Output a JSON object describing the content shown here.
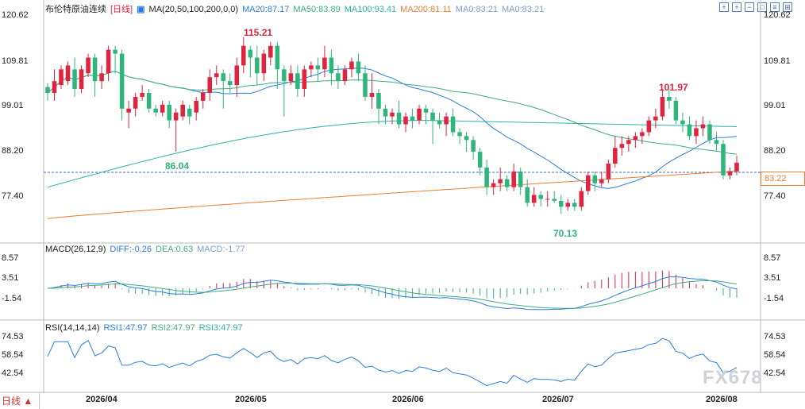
{
  "main": {
    "legend": {
      "title": "布伦特原油连续",
      "period": "[日线]",
      "ma_label": "MA(20,50,100,200,0,0)",
      "ma20": "MA20:87.17",
      "ma50": "MA50:83.89",
      "ma100": "MA100:93.41",
      "ma200": "MA200:81.11",
      "ma0a": "MA0:83.21",
      "ma0b": "MA0:83.21"
    },
    "y_ticks": [
      "120.62",
      "109.81",
      "99.01",
      "88.20",
      "77.40"
    ],
    "price_tag": "83.22",
    "annotations": {
      "high": "115.21",
      "mid_high": "101.97",
      "low_a": "86.04",
      "low_b": "70.13"
    }
  },
  "macd": {
    "legend": {
      "title": "MACD(26,12,9)",
      "diff": "DIFF:-0.26",
      "dea": "DEA:0.63",
      "macd": "MACD:-1.77"
    },
    "y_ticks": [
      "8.57",
      "3.51",
      "-1.54"
    ]
  },
  "rsi": {
    "legend": {
      "title": "RSI(14,14,14)",
      "rsi1": "RSI1:47.97",
      "rsi2": "RSI2:47.97",
      "rsi3": "RSI3:47.97"
    },
    "y_ticks": [
      "74.53",
      "58.54",
      "42.54"
    ]
  },
  "x_ticks": [
    "2026/04",
    "2026/05",
    "2026/06",
    "2026/07",
    "2026/08"
  ],
  "period_button": "日线 ▲",
  "watermark": "FX678",
  "colors": {
    "up": "#e0233e",
    "down": "#2fb57a",
    "ma20": "#2a7de0",
    "ma50": "#3fad7f",
    "ma100": "#2ab3a8",
    "ma200": "#ee7d2e",
    "text_up": "#e0233e",
    "text_down": "#2fb57a"
  },
  "chart_data": {
    "type": "candlestick",
    "price_range": [
      66,
      120.62
    ],
    "candles_ohlc": [
      [
        102.5,
        103.5,
        99,
        101
      ],
      [
        101,
        107,
        99,
        104
      ],
      [
        103,
        108,
        102,
        107
      ],
      [
        104,
        109,
        103,
        108
      ],
      [
        107,
        110,
        100,
        102
      ],
      [
        102,
        108,
        101,
        107
      ],
      [
        106,
        111,
        105,
        110
      ],
      [
        110,
        111,
        100,
        104
      ],
      [
        104,
        108,
        102,
        106
      ],
      [
        106,
        113,
        104,
        112
      ],
      [
        112,
        113,
        106,
        111
      ],
      [
        111,
        112,
        94,
        97
      ],
      [
        96,
        99,
        92,
        97
      ],
      [
        97,
        101,
        95,
        100
      ],
      [
        100,
        103,
        99,
        101
      ],
      [
        101,
        102,
        96,
        97
      ],
      [
        97,
        98,
        95,
        96
      ],
      [
        96,
        99,
        95,
        98
      ],
      [
        98,
        99,
        92,
        94
      ],
      [
        94,
        97,
        86.04,
        96
      ],
      [
        95,
        99,
        94,
        98
      ],
      [
        97,
        98,
        93,
        95
      ],
      [
        96,
        100,
        94,
        99
      ],
      [
        99,
        102,
        97,
        101
      ],
      [
        101,
        107,
        99,
        105
      ],
      [
        105,
        108,
        103,
        106
      ],
      [
        106,
        107,
        97,
        104
      ],
      [
        104,
        106,
        101,
        103
      ],
      [
        103,
        110,
        100,
        108
      ],
      [
        108,
        115.21,
        106,
        113
      ],
      [
        112,
        113,
        105,
        110
      ],
      [
        110,
        113,
        103,
        106
      ],
      [
        106,
        112,
        104,
        111
      ],
      [
        110,
        114,
        108,
        113
      ],
      [
        113,
        114,
        102,
        107
      ],
      [
        107,
        108,
        95,
        104
      ],
      [
        104,
        108,
        103,
        106
      ],
      [
        106,
        108,
        100,
        102
      ],
      [
        102,
        108,
        100,
        107
      ],
      [
        107,
        109,
        105,
        108
      ],
      [
        108,
        110,
        104,
        107
      ],
      [
        107,
        113,
        105,
        110
      ],
      [
        110,
        112,
        103,
        106
      ],
      [
        106,
        108,
        102,
        104
      ],
      [
        104,
        108,
        103,
        107
      ],
      [
        107,
        110,
        105,
        109
      ],
      [
        109,
        111,
        104,
        106
      ],
      [
        106,
        108,
        99,
        100
      ],
      [
        100,
        106,
        97,
        101
      ],
      [
        101,
        102,
        93,
        97
      ],
      [
        97,
        98,
        93,
        95
      ],
      [
        95,
        97,
        93,
        96
      ],
      [
        96,
        99,
        92,
        93
      ],
      [
        93,
        96,
        91,
        95
      ],
      [
        95,
        97,
        92,
        94
      ],
      [
        94,
        98,
        93,
        97
      ],
      [
        97,
        98,
        93,
        96
      ],
      [
        96,
        97,
        88,
        94
      ],
      [
        94,
        96,
        92,
        93
      ],
      [
        93,
        96,
        90,
        95
      ],
      [
        95,
        97,
        90,
        91
      ],
      [
        91,
        92,
        88,
        90
      ],
      [
        90,
        91,
        86,
        89
      ],
      [
        89,
        90,
        84,
        86
      ],
      [
        86,
        87,
        80,
        82
      ],
      [
        82,
        84,
        75,
        77
      ],
      [
        77,
        79,
        75,
        78
      ],
      [
        78,
        82,
        76,
        79
      ],
      [
        79,
        80,
        76,
        77
      ],
      [
        77,
        83,
        76,
        81
      ],
      [
        81,
        82,
        75,
        77
      ],
      [
        77,
        79,
        72,
        73
      ],
      [
        73,
        77,
        72,
        75
      ],
      [
        75,
        76,
        72,
        74
      ],
      [
        74,
        76,
        72,
        74
      ],
      [
        74,
        76,
        73,
        73.5
      ],
      [
        73.5,
        75,
        70.13,
        72
      ],
      [
        72,
        74,
        71,
        73
      ],
      [
        73,
        74,
        71,
        72
      ],
      [
        72,
        77,
        71,
        76
      ],
      [
        76,
        81,
        75,
        80
      ],
      [
        80,
        81,
        76,
        78
      ],
      [
        78,
        81,
        77,
        79
      ],
      [
        79,
        84,
        78,
        83
      ],
      [
        83,
        90,
        82,
        87
      ],
      [
        87,
        90,
        85,
        88
      ],
      [
        88,
        90,
        86,
        89
      ],
      [
        89,
        91,
        87,
        90
      ],
      [
        90,
        92,
        88,
        91
      ],
      [
        91,
        95,
        90,
        94
      ],
      [
        94,
        97,
        92,
        95
      ],
      [
        95,
        102,
        94,
        100
      ],
      [
        100,
        101.97,
        97,
        99
      ],
      [
        99,
        100,
        93,
        94
      ],
      [
        94,
        96,
        91,
        93
      ],
      [
        93,
        95,
        89,
        90
      ],
      [
        90,
        94,
        88,
        92
      ],
      [
        92,
        95,
        90,
        93
      ],
      [
        93,
        94,
        88,
        89
      ],
      [
        89,
        91,
        86,
        88
      ],
      [
        88,
        89,
        79,
        80
      ],
      [
        80,
        82,
        79,
        81
      ],
      [
        81,
        85,
        80,
        83.22
      ]
    ],
    "macd": {
      "y_range": [
        -9,
        10
      ]
    },
    "rsi": {
      "y_range": [
        20,
        80
      ]
    }
  }
}
